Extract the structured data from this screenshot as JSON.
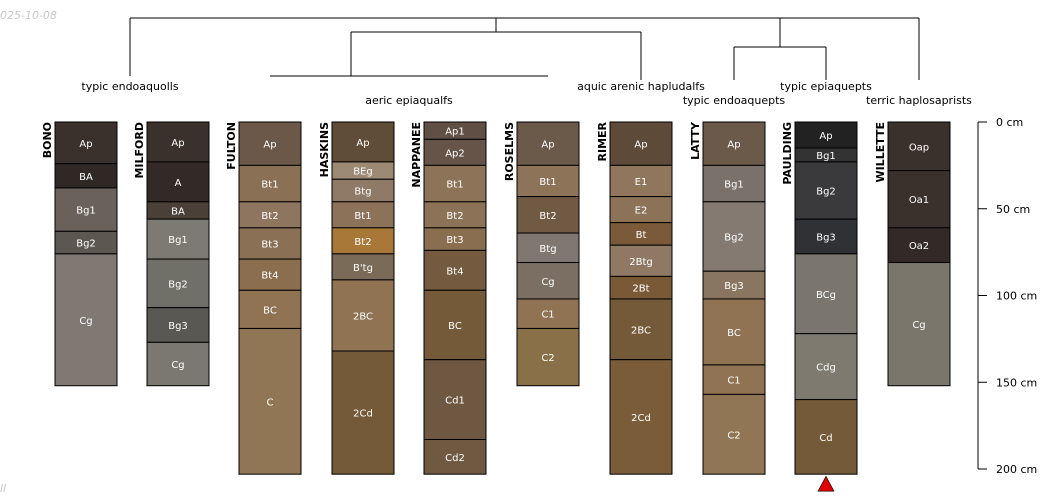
{
  "date_label": "025-10-08",
  "corner_label": "ll",
  "classes": [
    "typic endoaquolls",
    "aeric epiaqualfs",
    "aquic arenic hapludalfs",
    "typic endoaquepts",
    "typic epiaquepts",
    "terric haplosaprists"
  ],
  "depth_axis": {
    "unit": "cm",
    "ticks": [
      0,
      50,
      100,
      150,
      200
    ],
    "labels": [
      "0 cm",
      "50 cm",
      "100 cm",
      "150 cm",
      "200 cm"
    ]
  },
  "marker": {
    "profile": "PAULDING",
    "color": "#e00000",
    "symbol": "triangle"
  },
  "profiles": [
    {
      "name": "BONO",
      "horizons": [
        {
          "name": "Ap",
          "top": 0,
          "bottom": 24,
          "color": "#3a302c"
        },
        {
          "name": "BA",
          "top": 24,
          "bottom": 38,
          "color": "#2f2824"
        },
        {
          "name": "Bg1",
          "top": 38,
          "bottom": 63,
          "color": "#6a615b"
        },
        {
          "name": "Bg2",
          "top": 63,
          "bottom": 76,
          "color": "#5d5752"
        },
        {
          "name": "Cg",
          "top": 76,
          "bottom": 152,
          "color": "#7f7873"
        }
      ]
    },
    {
      "name": "MILFORD",
      "horizons": [
        {
          "name": "Ap",
          "top": 0,
          "bottom": 23,
          "color": "#3a302c"
        },
        {
          "name": "A",
          "top": 23,
          "bottom": 46,
          "color": "#332a27"
        },
        {
          "name": "BA",
          "top": 46,
          "bottom": 56,
          "color": "#4a4038"
        },
        {
          "name": "Bg1",
          "top": 56,
          "bottom": 79,
          "color": "#7c7a72"
        },
        {
          "name": "Bg2",
          "top": 79,
          "bottom": 107,
          "color": "#707068"
        },
        {
          "name": "Bg3",
          "top": 107,
          "bottom": 127,
          "color": "#5a5852"
        },
        {
          "name": "Cg",
          "top": 127,
          "bottom": 152,
          "color": "#7a7870"
        }
      ]
    },
    {
      "name": "FULTON",
      "horizons": [
        {
          "name": "Ap",
          "top": 0,
          "bottom": 25,
          "color": "#6b5848"
        },
        {
          "name": "Bt1",
          "top": 25,
          "bottom": 46,
          "color": "#8a7055"
        },
        {
          "name": "Bt2",
          "top": 46,
          "bottom": 61,
          "color": "#8d7560"
        },
        {
          "name": "Bt3",
          "top": 61,
          "bottom": 79,
          "color": "#8a7055"
        },
        {
          "name": "Bt4",
          "top": 79,
          "bottom": 97,
          "color": "#8b6e4e"
        },
        {
          "name": "BC",
          "top": 97,
          "bottom": 119,
          "color": "#8f7353"
        },
        {
          "name": "C",
          "top": 119,
          "bottom": 203,
          "color": "#917656"
        }
      ]
    },
    {
      "name": "HASKINS",
      "horizons": [
        {
          "name": "Ap",
          "top": 0,
          "bottom": 23,
          "color": "#5f4d38"
        },
        {
          "name": "BEg",
          "top": 23,
          "bottom": 33,
          "color": "#9c8a75"
        },
        {
          "name": "Btg",
          "top": 33,
          "bottom": 46,
          "color": "#8e7a66"
        },
        {
          "name": "Bt1",
          "top": 46,
          "bottom": 61,
          "color": "#8c7258"
        },
        {
          "name": "Bt2",
          "top": 61,
          "bottom": 76,
          "color": "#a87838"
        },
        {
          "name": "B'tg",
          "top": 76,
          "bottom": 91,
          "color": "#7a6a58"
        },
        {
          "name": "2BC",
          "top": 91,
          "bottom": 132,
          "color": "#8f7353"
        },
        {
          "name": "2Cd",
          "top": 132,
          "bottom": 203,
          "color": "#755a3a"
        }
      ]
    },
    {
      "name": "NAPPANEE",
      "horizons": [
        {
          "name": "Ap1",
          "top": 0,
          "bottom": 10,
          "color": "#5f4f44"
        },
        {
          "name": "Ap2",
          "top": 10,
          "bottom": 25,
          "color": "#665448"
        },
        {
          "name": "Bt1",
          "top": 25,
          "bottom": 46,
          "color": "#8d7358"
        },
        {
          "name": "Bt2",
          "top": 46,
          "bottom": 61,
          "color": "#8c7256"
        },
        {
          "name": "Bt3",
          "top": 61,
          "bottom": 74,
          "color": "#8a6e50"
        },
        {
          "name": "Bt4",
          "top": 74,
          "bottom": 97,
          "color": "#745a3e"
        },
        {
          "name": "BC",
          "top": 97,
          "bottom": 137,
          "color": "#755a3a"
        },
        {
          "name": "Cd1",
          "top": 137,
          "bottom": 183,
          "color": "#6e5842"
        },
        {
          "name": "Cd2",
          "top": 183,
          "bottom": 203,
          "color": "#6f5940"
        }
      ]
    },
    {
      "name": "ROSELMS",
      "horizons": [
        {
          "name": "Ap",
          "top": 0,
          "bottom": 25,
          "color": "#6b5a4a"
        },
        {
          "name": "Bt1",
          "top": 25,
          "bottom": 43,
          "color": "#8d7358"
        },
        {
          "name": "Bt2",
          "top": 43,
          "bottom": 64,
          "color": "#705a44"
        },
        {
          "name": "Btg",
          "top": 64,
          "bottom": 81,
          "color": "#807870"
        },
        {
          "name": "Cg",
          "top": 81,
          "bottom": 102,
          "color": "#7a6f62"
        },
        {
          "name": "C1",
          "top": 102,
          "bottom": 119,
          "color": "#8f7353"
        },
        {
          "name": "C2",
          "top": 119,
          "bottom": 152,
          "color": "#8a7048"
        }
      ]
    },
    {
      "name": "RIMER",
      "horizons": [
        {
          "name": "Ap",
          "top": 0,
          "bottom": 25,
          "color": "#5e4a38"
        },
        {
          "name": "E1",
          "top": 25,
          "bottom": 43,
          "color": "#8f765c"
        },
        {
          "name": "E2",
          "top": 43,
          "bottom": 58,
          "color": "#8c7257"
        },
        {
          "name": "Bt",
          "top": 58,
          "bottom": 71,
          "color": "#7a5a38"
        },
        {
          "name": "2Btg",
          "top": 71,
          "bottom": 89,
          "color": "#8f7864"
        },
        {
          "name": "2Bt",
          "top": 89,
          "bottom": 102,
          "color": "#7a5a36"
        },
        {
          "name": "2BC",
          "top": 102,
          "bottom": 137,
          "color": "#755a3a"
        },
        {
          "name": "2Cd",
          "top": 137,
          "bottom": 203,
          "color": "#7a5c38"
        }
      ]
    },
    {
      "name": "LATTY",
      "horizons": [
        {
          "name": "Ap",
          "top": 0,
          "bottom": 25,
          "color": "#6b5a4a"
        },
        {
          "name": "Bg1",
          "top": 25,
          "bottom": 46,
          "color": "#7a716a"
        },
        {
          "name": "Bg2",
          "top": 46,
          "bottom": 86,
          "color": "#857a72"
        },
        {
          "name": "Bg3",
          "top": 86,
          "bottom": 102,
          "color": "#8a7660"
        },
        {
          "name": "BC",
          "top": 102,
          "bottom": 140,
          "color": "#8f7353"
        },
        {
          "name": "C1",
          "top": 140,
          "bottom": 157,
          "color": "#8f7353"
        },
        {
          "name": "C2",
          "top": 157,
          "bottom": 203,
          "color": "#917656"
        }
      ]
    },
    {
      "name": "PAULDING",
      "horizons": [
        {
          "name": "Ap",
          "top": 0,
          "bottom": 15,
          "color": "#222222"
        },
        {
          "name": "Bg1",
          "top": 15,
          "bottom": 23,
          "color": "#333333"
        },
        {
          "name": "Bg2",
          "top": 23,
          "bottom": 56,
          "color": "#3a3a3c"
        },
        {
          "name": "Bg3",
          "top": 56,
          "bottom": 76,
          "color": "#2f3134"
        },
        {
          "name": "BCg",
          "top": 76,
          "bottom": 122,
          "color": "#7a766e"
        },
        {
          "name": "Cdg",
          "top": 122,
          "bottom": 160,
          "color": "#7e7a70"
        },
        {
          "name": "Cd",
          "top": 160,
          "bottom": 203,
          "color": "#755a3a"
        }
      ]
    },
    {
      "name": "WILLETTE",
      "horizons": [
        {
          "name": "Oap",
          "top": 0,
          "bottom": 28,
          "color": "#3a302c"
        },
        {
          "name": "Oa1",
          "top": 28,
          "bottom": 61,
          "color": "#3a302c"
        },
        {
          "name": "Oa2",
          "top": 61,
          "bottom": 81,
          "color": "#332a27"
        },
        {
          "name": "Cg",
          "top": 81,
          "bottom": 152,
          "color": "#7a766c"
        }
      ]
    }
  ]
}
